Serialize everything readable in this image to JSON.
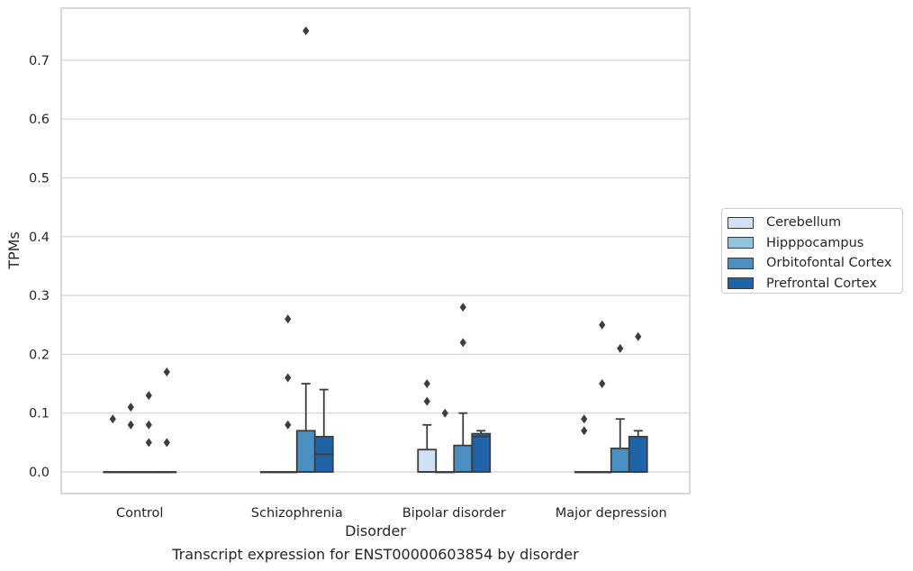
{
  "chart_data": {
    "type": "boxplot",
    "xlabel": "Disorder",
    "ylabel": "TPMs",
    "caption": "Transcript expression for ENST00000603854 by disorder",
    "categories": [
      "Control",
      "Schizophrenia",
      "Bipolar disorder",
      "Major depression"
    ],
    "ylim": [
      -0.036,
      0.787
    ],
    "yticks": [
      "0.0",
      "0.1",
      "0.2",
      "0.3",
      "0.4",
      "0.5",
      "0.6",
      "0.7"
    ],
    "grid": true,
    "legend_position": "right",
    "series": [
      {
        "name": "Cerebellum",
        "color": "#cfe1f2",
        "boxes": [
          {
            "q1": 0,
            "median": 0,
            "q3": 0,
            "whisker_low": 0,
            "whisker_high": 0,
            "outliers": [
              0.09
            ]
          },
          {
            "q1": 0,
            "median": 0,
            "q3": 0,
            "whisker_low": 0,
            "whisker_high": 0,
            "outliers": []
          },
          {
            "q1": 0,
            "median": 0,
            "q3": 0.038,
            "whisker_low": 0,
            "whisker_high": 0.08,
            "outliers": [
              0.12,
              0.15
            ]
          },
          {
            "q1": 0,
            "median": 0,
            "q3": 0,
            "whisker_low": 0,
            "whisker_high": 0,
            "outliers": [
              0.07,
              0.09
            ]
          }
        ]
      },
      {
        "name": "Hipppocampus",
        "color": "#93c4de",
        "boxes": [
          {
            "q1": 0,
            "median": 0,
            "q3": 0,
            "whisker_low": 0,
            "whisker_high": 0,
            "outliers": [
              0.08,
              0.11
            ]
          },
          {
            "q1": 0,
            "median": 0,
            "q3": 0,
            "whisker_low": 0,
            "whisker_high": 0,
            "outliers": [
              0.08,
              0.16,
              0.26
            ]
          },
          {
            "q1": 0,
            "median": 0,
            "q3": 0,
            "whisker_low": 0,
            "whisker_high": 0,
            "outliers": [
              0.1
            ]
          },
          {
            "q1": 0,
            "median": 0,
            "q3": 0,
            "whisker_low": 0,
            "whisker_high": 0,
            "outliers": [
              0.15,
              0.25
            ]
          }
        ]
      },
      {
        "name": "Orbitofontal Cortex",
        "color": "#4a90c2",
        "boxes": [
          {
            "q1": 0,
            "median": 0,
            "q3": 0,
            "whisker_low": 0,
            "whisker_high": 0,
            "outliers": [
              0.05,
              0.08,
              0.13
            ]
          },
          {
            "q1": 0,
            "median": 0,
            "q3": 0.07,
            "whisker_low": 0,
            "whisker_high": 0.15,
            "outliers": [
              0.75
            ]
          },
          {
            "q1": 0,
            "median": 0,
            "q3": 0.045,
            "whisker_low": 0,
            "whisker_high": 0.1,
            "outliers": [
              0.22,
              0.28
            ]
          },
          {
            "q1": 0,
            "median": 0,
            "q3": 0.04,
            "whisker_low": 0,
            "whisker_high": 0.09,
            "outliers": [
              0.21
            ]
          }
        ]
      },
      {
        "name": "Prefrontal Cortex",
        "color": "#1f63a8",
        "boxes": [
          {
            "q1": 0,
            "median": 0,
            "q3": 0,
            "whisker_low": 0,
            "whisker_high": 0,
            "outliers": [
              0.05,
              0.17
            ]
          },
          {
            "q1": 0,
            "median": 0.03,
            "q3": 0.06,
            "whisker_low": 0,
            "whisker_high": 0.14,
            "outliers": []
          },
          {
            "q1": 0,
            "median": 0.06,
            "q3": 0.065,
            "whisker_low": 0,
            "whisker_high": 0.07,
            "outliers": []
          },
          {
            "q1": 0,
            "median": 0,
            "q3": 0.06,
            "whisker_low": 0,
            "whisker_high": 0.07,
            "outliers": [
              0.23
            ]
          }
        ]
      }
    ]
  }
}
